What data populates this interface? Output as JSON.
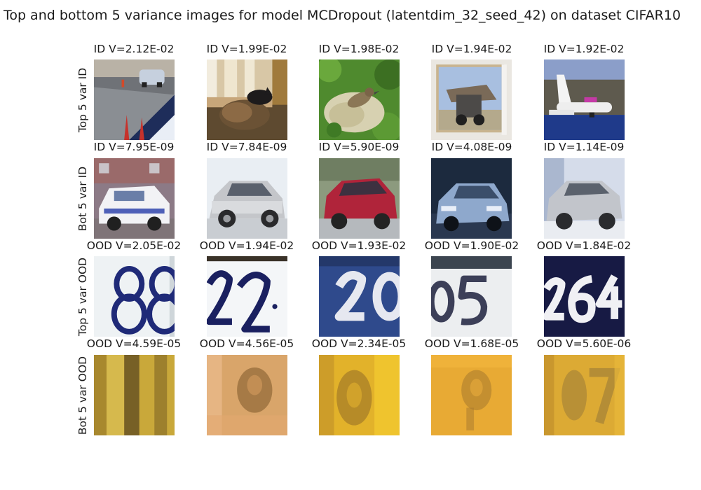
{
  "chart_data": {
    "type": "image-grid",
    "title": "Top and bottom 5 variance images for model MCDropout (latentdim_32_seed_42) on dataset CIFAR10",
    "rows": [
      {
        "label": "Top 5 var ID",
        "panels": [
          {
            "title": "ID V=2.12E-02",
            "variance": 0.0212,
            "content": "road with car and red cones"
          },
          {
            "title": "ID V=1.99E-02",
            "variance": 0.0199,
            "content": "cat lying by window"
          },
          {
            "title": "ID V=1.98E-02",
            "variance": 0.0198,
            "content": "bird on rock with leaves"
          },
          {
            "title": "ID V=1.94E-02",
            "variance": 0.0194,
            "content": "truck in framed picture"
          },
          {
            "title": "ID V=1.92E-02",
            "variance": 0.0192,
            "content": "airplane over blue water"
          }
        ]
      },
      {
        "label": "Bot 5 var ID",
        "panels": [
          {
            "title": "ID V=7.95E-09",
            "variance": 7.95e-09,
            "content": "white police car"
          },
          {
            "title": "ID V=7.84E-09",
            "variance": 7.84e-09,
            "content": "silver hatchback car"
          },
          {
            "title": "ID V=5.90E-09",
            "variance": 5.9e-09,
            "content": "red car"
          },
          {
            "title": "ID V=4.08E-09",
            "variance": 4.08e-09,
            "content": "light blue car at night"
          },
          {
            "title": "ID V=1.14E-09",
            "variance": 1.14e-09,
            "content": "silver sedan"
          }
        ]
      },
      {
        "label": "Top 5 var OOD",
        "panels": [
          {
            "title": "OOD V=2.05E-02",
            "variance": 0.0205,
            "content": "house number 88"
          },
          {
            "title": "OOD V=1.94E-02",
            "variance": 0.0194,
            "content": "house number 22"
          },
          {
            "title": "OOD V=1.93E-02",
            "variance": 0.0193,
            "content": "house number 20"
          },
          {
            "title": "OOD V=1.90E-02",
            "variance": 0.019,
            "content": "house number 05"
          },
          {
            "title": "OOD V=1.84E-02",
            "variance": 0.0184,
            "content": "house number 264"
          }
        ]
      },
      {
        "label": "Bot 5 var OOD",
        "panels": [
          {
            "title": "OOD V=4.59E-05",
            "variance": 4.59e-05,
            "content": "blurry yellow digits"
          },
          {
            "title": "OOD V=4.56E-05",
            "variance": 4.56e-05,
            "content": "blurry peach digit"
          },
          {
            "title": "OOD V=2.34E-05",
            "variance": 2.34e-05,
            "content": "blurry yellow digit"
          },
          {
            "title": "OOD V=1.68E-05",
            "variance": 1.68e-05,
            "content": "blurry orange digit"
          },
          {
            "title": "OOD V=5.60E-06",
            "variance": 5.6e-06,
            "content": "blurry yellow digits"
          }
        ]
      }
    ]
  }
}
